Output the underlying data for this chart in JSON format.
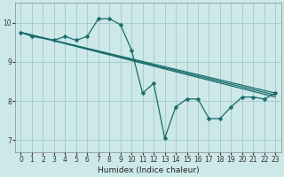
{
  "bg_color": "#cce8e8",
  "grid_color": "#aacccc",
  "line_color": "#1a6b6b",
  "marker": "D",
  "markersize": 2.5,
  "linewidth": 0.9,
  "xlabel": "Humidex (Indice chaleur)",
  "xlim": [
    -0.5,
    23.5
  ],
  "ylim": [
    6.7,
    10.5
  ],
  "xticks": [
    0,
    1,
    2,
    3,
    4,
    5,
    6,
    7,
    8,
    9,
    10,
    11,
    12,
    13,
    14,
    15,
    16,
    17,
    18,
    19,
    20,
    21,
    22,
    23
  ],
  "yticks": [
    7,
    8,
    9,
    10
  ],
  "series_with_markers": [
    {
      "x": [
        0,
        1,
        3,
        4,
        5,
        6,
        7,
        8,
        9,
        10,
        11,
        12,
        13,
        14,
        15,
        16,
        17,
        18,
        19,
        20,
        21,
        22,
        23
      ],
      "y": [
        9.75,
        9.65,
        9.55,
        9.65,
        9.55,
        9.65,
        10.1,
        10.1,
        9.95,
        9.3,
        8.2,
        8.45,
        7.05,
        7.85,
        8.05,
        8.05,
        7.55,
        7.55,
        7.85,
        8.1,
        8.1,
        8.05,
        8.2
      ]
    }
  ],
  "series_no_markers": [
    {
      "x": [
        0,
        23
      ],
      "y": [
        9.75,
        8.2
      ]
    },
    {
      "x": [
        0,
        23
      ],
      "y": [
        9.75,
        8.15
      ]
    },
    {
      "x": [
        0,
        23
      ],
      "y": [
        9.75,
        8.1
      ]
    }
  ]
}
